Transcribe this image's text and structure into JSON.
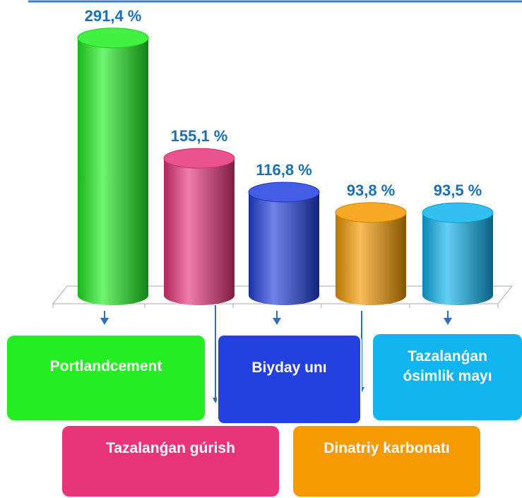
{
  "chart_data": {
    "type": "bar",
    "categories": [
      "Portlandcement",
      "Tazalanǵan gúrish",
      "Biyday unı",
      "Dinatriy karbonatı",
      "Tazalanǵan ósimlik mayı"
    ],
    "values": [
      291.4,
      155.1,
      116.8,
      93.8,
      93.5
    ],
    "value_labels": [
      "291,4 %",
      "155,1 %",
      "116,8 %",
      "93,8 %",
      "93,5 %"
    ],
    "colors": [
      "#22ee22",
      "#e8357a",
      "#2340e0",
      "#f59a00",
      "#10b4ee"
    ]
  }
}
